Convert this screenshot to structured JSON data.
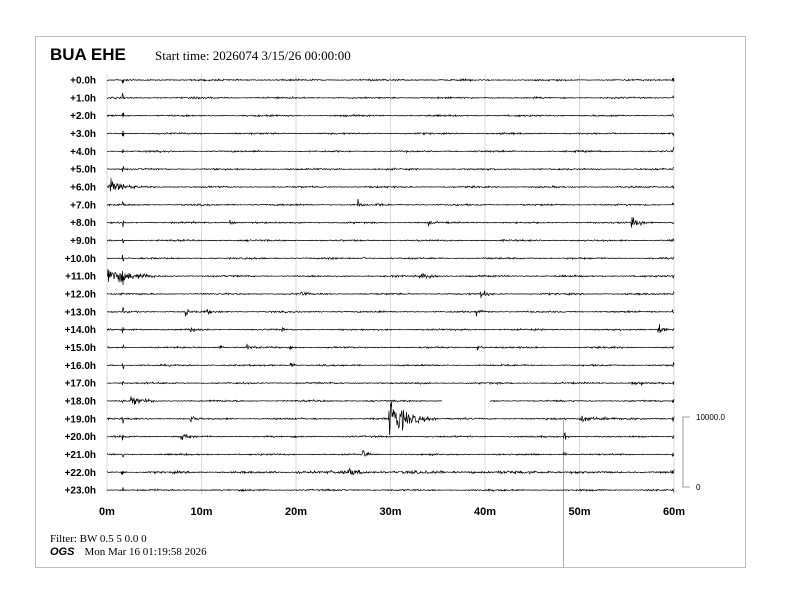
{
  "header": {
    "station": "BUA EHE",
    "start_time": "Start time: 2026074  3/15/26 00:00:00"
  },
  "footer": {
    "filter": "Filter: BW 0.5 5 0.0 0",
    "org": "OGS",
    "generated": "Mon Mar 16 01:19:58 2026"
  },
  "chart_data": {
    "type": "line",
    "subtype": "helicorder",
    "row_labels": [
      "+0.0h",
      "+1.0h",
      "+2.0h",
      "+3.0h",
      "+4.0h",
      "+5.0h",
      "+6.0h",
      "+7.0h",
      "+8.0h",
      "+9.0h",
      "+10.0h",
      "+11.0h",
      "+12.0h",
      "+13.0h",
      "+14.0h",
      "+15.0h",
      "+16.0h",
      "+17.0h",
      "+18.0h",
      "+19.0h",
      "+20.0h",
      "+21.0h",
      "+22.0h",
      "+23.0h"
    ],
    "x_ticks": [
      "0m",
      "10m",
      "20m",
      "30m",
      "40m",
      "50m",
      "60m"
    ],
    "xlim": [
      0,
      60
    ],
    "grid": true,
    "scale_bar": {
      "top_label": "10000.0",
      "bottom_label": "0"
    },
    "trace_color": "#000000",
    "gaps": [
      {
        "hour": 18,
        "from_min": 35.5,
        "to_min": 40.5
      }
    ],
    "events": [
      {
        "hour": 6,
        "min": 0.2,
        "amp": 1.4,
        "dur": 3
      },
      {
        "hour": 7,
        "min": 26.5,
        "amp": 0.8,
        "dur": 0.8
      },
      {
        "hour": 7,
        "min": 28.5,
        "amp": 0.3,
        "dur": 1
      },
      {
        "hour": 8,
        "min": 13,
        "amp": 0.3,
        "dur": 1
      },
      {
        "hour": 8,
        "min": 34,
        "amp": 0.35,
        "dur": 1
      },
      {
        "hour": 8,
        "min": 55.5,
        "amp": 0.8,
        "dur": 2.5
      },
      {
        "hour": 10,
        "min": 23,
        "amp": 0.3,
        "dur": 1
      },
      {
        "hour": 10,
        "min": 27,
        "amp": 0.3,
        "dur": 1
      },
      {
        "hour": 11,
        "min": 0.1,
        "amp": 1.7,
        "dur": 5
      },
      {
        "hour": 11,
        "min": 33,
        "amp": 0.45,
        "dur": 4
      },
      {
        "hour": 12,
        "min": 20.5,
        "amp": 0.5,
        "dur": 1.2
      },
      {
        "hour": 12,
        "min": 39.5,
        "amp": 0.8,
        "dur": 1.5
      },
      {
        "hour": 13,
        "min": 8.3,
        "amp": 0.6,
        "dur": 1
      },
      {
        "hour": 13,
        "min": 10.5,
        "amp": 0.35,
        "dur": 1
      },
      {
        "hour": 13,
        "min": 39,
        "amp": 0.8,
        "dur": 1.5
      },
      {
        "hour": 14,
        "min": 8.8,
        "amp": 0.6,
        "dur": 1
      },
      {
        "hour": 14,
        "min": 18.5,
        "amp": 0.4,
        "dur": 0.6
      },
      {
        "hour": 14,
        "min": 58.3,
        "amp": 0.9,
        "dur": 1.2
      },
      {
        "hour": 15,
        "min": 11.8,
        "amp": 0.5,
        "dur": 1
      },
      {
        "hour": 15,
        "min": 14.8,
        "amp": 0.7,
        "dur": 1.2
      },
      {
        "hour": 15,
        "min": 19.3,
        "amp": 0.5,
        "dur": 0.8
      },
      {
        "hour": 15,
        "min": 39.2,
        "amp": 0.5,
        "dur": 1
      },
      {
        "hour": 16,
        "min": 19.4,
        "amp": 0.8,
        "dur": 0.8
      },
      {
        "hour": 17,
        "min": 55.5,
        "amp": 0.35,
        "dur": 3
      },
      {
        "hour": 18,
        "min": 2.5,
        "amp": 0.8,
        "dur": 2.5
      },
      {
        "hour": 19,
        "min": 8.8,
        "amp": 0.8,
        "dur": 1.2
      },
      {
        "hour": 19,
        "min": 29.8,
        "amp": 3.2,
        "dur": 5
      },
      {
        "hour": 19,
        "min": 50,
        "amp": 0.45,
        "dur": 6
      },
      {
        "hour": 20,
        "min": 7.8,
        "amp": 1.0,
        "dur": 1.5
      },
      {
        "hour": 20,
        "min": 48.3,
        "amp": 1.0,
        "dur": 0.6
      },
      {
        "hour": 21,
        "min": 27,
        "amp": 0.8,
        "dur": 1.2
      },
      {
        "hour": 21,
        "min": 48.3,
        "amp": 0.6,
        "dur": 0.6
      },
      {
        "hour": 22,
        "min": 25.5,
        "amp": 0.6,
        "dur": 2
      },
      {
        "hour": 22,
        "min": 1.5,
        "amp": 0.5,
        "dur": 0.6
      }
    ]
  }
}
